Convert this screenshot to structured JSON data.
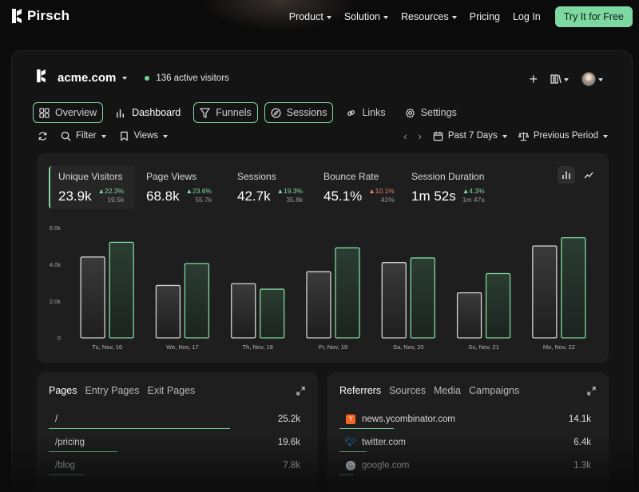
{
  "brand": {
    "name": "Pirsch"
  },
  "nav": {
    "items": [
      {
        "label": "Product",
        "dropdown": true
      },
      {
        "label": "Solution",
        "dropdown": true
      },
      {
        "label": "Resources",
        "dropdown": true
      },
      {
        "label": "Pricing",
        "dropdown": false
      },
      {
        "label": "Log In",
        "dropdown": false
      }
    ],
    "cta": "Try It for Free"
  },
  "site": {
    "domain": "acme.com",
    "active_visitors": "136 active visitors"
  },
  "tabs": [
    "Overview",
    "Dashboard",
    "Funnels",
    "Sessions",
    "Links",
    "Settings"
  ],
  "toolbar": {
    "filter": "Filter",
    "views": "Views",
    "range": "Past 7 Days",
    "compare": "Previous Period"
  },
  "metrics": [
    {
      "label": "Unique Visitors",
      "value": "23.9k",
      "delta": "22.3%",
      "direction": "up",
      "previous": "19.5k"
    },
    {
      "label": "Page Views",
      "value": "68.8k",
      "delta": "23.6%",
      "direction": "up",
      "previous": "55.7k"
    },
    {
      "label": "Sessions",
      "value": "42.7k",
      "delta": "19.3%",
      "direction": "up",
      "previous": "35.8k"
    },
    {
      "label": "Bounce Rate",
      "value": "45.1%",
      "delta": "10.1%",
      "direction": "down",
      "previous": "41%"
    },
    {
      "label": "Session Duration",
      "value": "1m 52s",
      "delta": "4.3%",
      "direction": "up",
      "previous": "1m 47s"
    }
  ],
  "colors": {
    "accent": "#7ed8a2",
    "negative": "#e5826d",
    "background": "#0b0b0b",
    "card": "#1e1e1e"
  },
  "chart_data": {
    "type": "bar",
    "categories": [
      "Tu, Nov, 16",
      "We, Nov, 17",
      "Th, Nov, 18",
      "Fr, Nov, 19",
      "Sa, Nov, 20",
      "Su, Nov, 21",
      "Mo, Nov, 22"
    ],
    "series": [
      {
        "values": [
          4400,
          2850,
          2950,
          3600,
          4100,
          2450,
          5000
        ]
      },
      {
        "values": [
          5200,
          4050,
          2650,
          4900,
          4350,
          3500,
          5450
        ]
      }
    ],
    "ylim": [
      0,
      6000
    ],
    "yticks": [
      "0",
      "2.0k",
      "4.0k",
      "6.0k"
    ],
    "grid": false
  },
  "pages": {
    "tabs": [
      "Pages",
      "Entry Pages",
      "Exit Pages"
    ],
    "rows": [
      {
        "label": "/",
        "value": "25.2k",
        "share": 1.0
      },
      {
        "label": "/pricing",
        "value": "19.6k",
        "share": 0.38
      },
      {
        "label": "/blog",
        "value": "7.8k",
        "share": 0.2
      }
    ]
  },
  "referrers": {
    "tabs": [
      "Referrers",
      "Sources",
      "Media",
      "Campaigns"
    ],
    "rows": [
      {
        "label": "news.ycombinator.com",
        "value": "14.1k",
        "icon": "ycombinator-icon",
        "share": 0.3
      },
      {
        "label": "twitter.com",
        "value": "6.4k",
        "icon": "twitter-icon",
        "share": 0.15
      },
      {
        "label": "google.com",
        "value": "1.3k",
        "icon": "google-icon",
        "share": 0.08
      }
    ]
  }
}
